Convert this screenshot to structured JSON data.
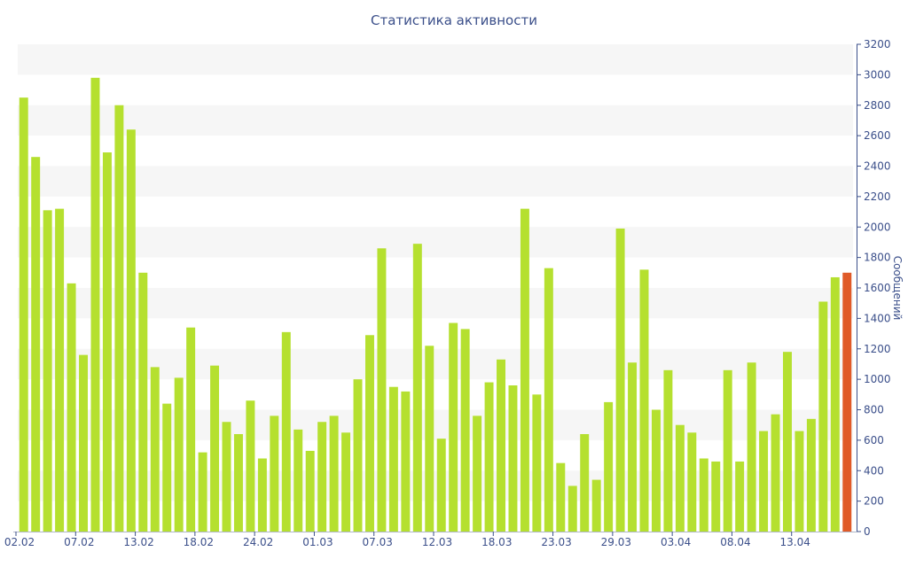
{
  "chart_data": {
    "type": "bar",
    "title": "Статистика активности",
    "ylabel": "Сообщений",
    "ylim": [
      0,
      3200
    ],
    "yticks": [
      0,
      200,
      400,
      600,
      800,
      1000,
      1200,
      1400,
      1600,
      1800,
      2000,
      2200,
      2400,
      2600,
      2800,
      3000,
      3200
    ],
    "y_axis_side": "right",
    "grid": "alternating horizontal bands",
    "x_tick_labels": [
      "02.02",
      "07.02",
      "13.02",
      "18.02",
      "24.02",
      "01.03",
      "07.03",
      "12.03",
      "18.03",
      "23.03",
      "29.03",
      "03.04",
      "08.04",
      "13.04"
    ],
    "x_tick_indices": [
      0,
      5,
      10,
      15,
      20,
      25,
      30,
      35,
      40,
      45,
      50,
      55,
      60,
      65
    ],
    "values": [
      2850,
      2460,
      2110,
      2120,
      1630,
      1160,
      2980,
      2490,
      2800,
      2640,
      1700,
      1080,
      840,
      1010,
      1340,
      520,
      1090,
      720,
      640,
      860,
      480,
      760,
      1310,
      670,
      530,
      720,
      760,
      650,
      1000,
      1290,
      1860,
      950,
      920,
      1890,
      1220,
      610,
      1370,
      1330,
      760,
      980,
      1130,
      960,
      2120,
      900,
      1730,
      450,
      300,
      640,
      340,
      850,
      1990,
      1110,
      1720,
      800,
      1060,
      700,
      650,
      480,
      460,
      1060,
      460,
      1110,
      660,
      770,
      1180,
      660,
      740,
      1510,
      1670,
      1700
    ],
    "bar_color": "#b5e02f",
    "highlight_color": "#e05a28",
    "highlight_index": 69
  }
}
